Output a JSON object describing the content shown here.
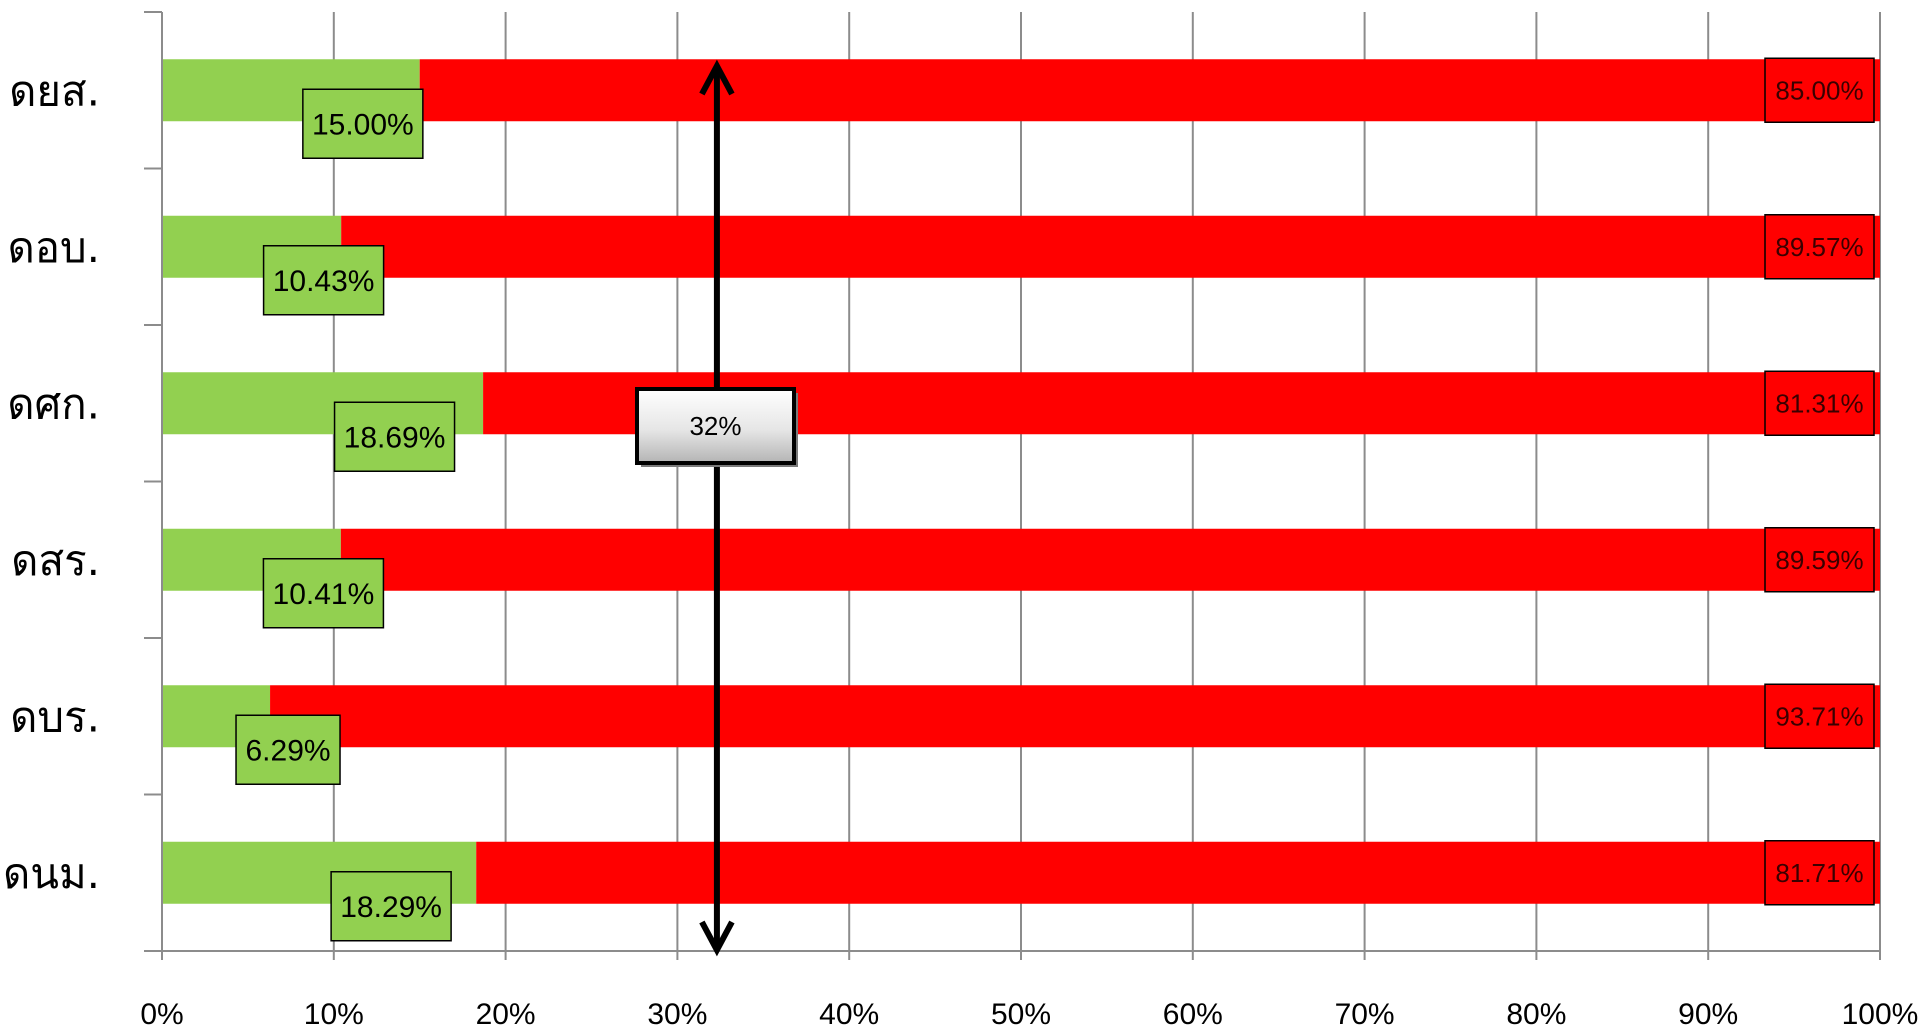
{
  "chart_data": {
    "type": "bar",
    "orientation": "horizontal",
    "stacked": "percent",
    "categories": [
      "ดยส.",
      "ดอบ.",
      "ดศก.",
      "ดสร.",
      "ดบร.",
      "ดนม."
    ],
    "series": [
      {
        "values": [
          15.0,
          10.43,
          18.69,
          10.41,
          6.29,
          18.29
        ],
        "labels": [
          "15.00%",
          "10.43%",
          "18.69%",
          "10.41%",
          "6.29%",
          "18.29%"
        ],
        "color": "#92d050"
      },
      {
        "values": [
          85.0,
          89.57,
          81.31,
          89.59,
          93.71,
          81.71
        ],
        "labels": [
          "85.00%",
          "89.57%",
          "81.31%",
          "89.59%",
          "93.71%",
          "81.71%"
        ],
        "color": "#ff0000"
      }
    ],
    "xlim": [
      0,
      100
    ],
    "xticks": [
      "0%",
      "10%",
      "20%",
      "30%",
      "40%",
      "50%",
      "60%",
      "70%",
      "80%",
      "90%",
      "100%"
    ],
    "grid": "vertical",
    "legend": "none",
    "annotation": {
      "x_value": 32.3,
      "label": "32%",
      "style": "double-headed vertical arrow"
    }
  }
}
